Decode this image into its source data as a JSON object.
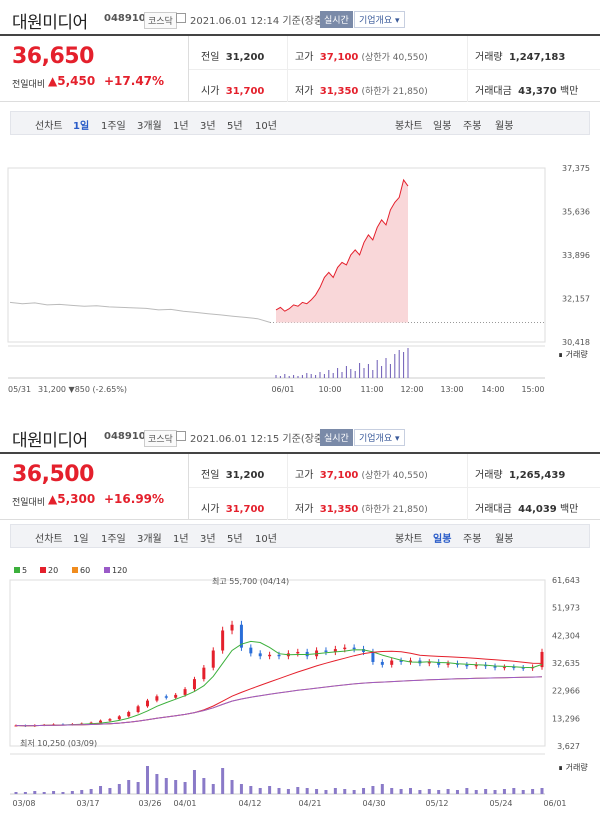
{
  "panels": [
    {
      "name": "대원미디어",
      "code": "048910",
      "market": "코스닥",
      "datetime": "2021.06.01 12:14 기준(장중)",
      "realtime_label": "실시간",
      "info_label": "기업개요",
      "price": "36,650",
      "change_label": "전일대비",
      "change": "▲5,450",
      "change_pct": "+17.47%",
      "prev_label": "전일",
      "prev": "31,200",
      "high_label": "고가",
      "high": "37,100",
      "upper_limit": "(상한가 40,550)",
      "volume_label": "거래량",
      "volume": "1,247,183",
      "open_label": "시가",
      "open": "31,700",
      "low_label": "저가",
      "low": "31,350",
      "lower_limit": "(하한가 21,850)",
      "amount_label": "거래대금",
      "amount": "43,370",
      "amount_unit": "백만"
    },
    {
      "name": "대원미디어",
      "code": "048910",
      "market": "코스닥",
      "datetime": "2021.06.01 12:15 기준(장중)",
      "realtime_label": "실시간",
      "info_label": "기업개요",
      "price": "36,500",
      "change_label": "전일대비",
      "change": "▲5,300",
      "change_pct": "+16.99%",
      "prev_label": "전일",
      "prev": "31,200",
      "high_label": "고가",
      "high": "37,100",
      "upper_limit": "(상한가 40,550)",
      "volume_label": "거래량",
      "volume": "1,265,439",
      "open_label": "시가",
      "open": "31,700",
      "low_label": "저가",
      "low": "31,350",
      "lower_limit": "(하한가 21,850)",
      "amount_label": "거래대금",
      "amount": "44,039",
      "amount_unit": "백만"
    }
  ],
  "tabs": {
    "line_label": "선차트",
    "line_periods": [
      "1일",
      "1주일",
      "3개월",
      "1년",
      "3년",
      "5년",
      "10년"
    ],
    "candle_label": "봉차트",
    "candle_periods": [
      "일봉",
      "주봉",
      "월봉"
    ]
  },
  "chart_data": [
    {
      "type": "area",
      "y_ticks": [
        "37,375",
        "35,636",
        "33,896",
        "32,157",
        "30,418"
      ],
      "ylim": [
        30418,
        37375
      ],
      "x_ticks": [
        "06/01",
        "10:00",
        "11:00",
        "12:00",
        "13:00",
        "14:00",
        "15:00"
      ],
      "prev_day_label": "05/31",
      "prev_day_close": "31,200",
      "prev_day_change": "▼850",
      "prev_day_pct": "(-2.65%)",
      "volume_label": "거래량",
      "prev_day_series": [
        32000,
        31950,
        31980,
        31900,
        31920,
        31880,
        31850,
        31870,
        31820,
        31800,
        31780,
        31760,
        31700,
        31720,
        31650,
        31600,
        31550,
        31500,
        31450,
        31400,
        31350,
        31200
      ],
      "today_series": [
        31700,
        31800,
        31650,
        31750,
        31900,
        31850,
        32000,
        31950,
        32100,
        32300,
        32600,
        33000,
        33200,
        33000,
        33400,
        33600,
        33500,
        33900,
        34100,
        33900,
        34400,
        34700,
        34500,
        35000,
        35300,
        35100,
        35700,
        36000,
        36200,
        36900,
        36650
      ]
    },
    {
      "type": "candlestick",
      "legend": [
        {
          "name": "5",
          "color": "#3cb03c"
        },
        {
          "name": "20",
          "color": "#e4202c"
        },
        {
          "name": "60",
          "color": "#f08c1e"
        },
        {
          "name": "120",
          "color": "#9a5ac8"
        }
      ],
      "y_ticks": [
        "61,643",
        "51,973",
        "42,304",
        "32,635",
        "22,966",
        "13,296",
        "3,627"
      ],
      "ylim": [
        3627,
        61643
      ],
      "x_ticks": [
        "03/08",
        "03/17",
        "03/26",
        "04/01",
        "04/12",
        "04/21",
        "04/30",
        "05/12",
        "05/24",
        "06/01"
      ],
      "max_label": "최고 55,700 (04/14)",
      "min_label": "최저 10,250 (03/09)",
      "volume_label": "거래량",
      "closes": [
        10800,
        10600,
        10900,
        11000,
        11200,
        11100,
        11300,
        11500,
        11800,
        12500,
        13000,
        14000,
        15500,
        17500,
        19500,
        21000,
        20500,
        21500,
        23500,
        27000,
        31000,
        37000,
        44000,
        46000,
        38000,
        36000,
        35000,
        35500,
        35000,
        36000,
        36500,
        35000,
        37000,
        36500,
        37500,
        38000,
        37500,
        36500,
        33000,
        32000,
        33500,
        33000,
        33500,
        32500,
        33000,
        32000,
        32500,
        32000,
        31500,
        32000,
        31500,
        31000,
        31200,
        31000,
        30800,
        31200,
        36500
      ]
    }
  ]
}
